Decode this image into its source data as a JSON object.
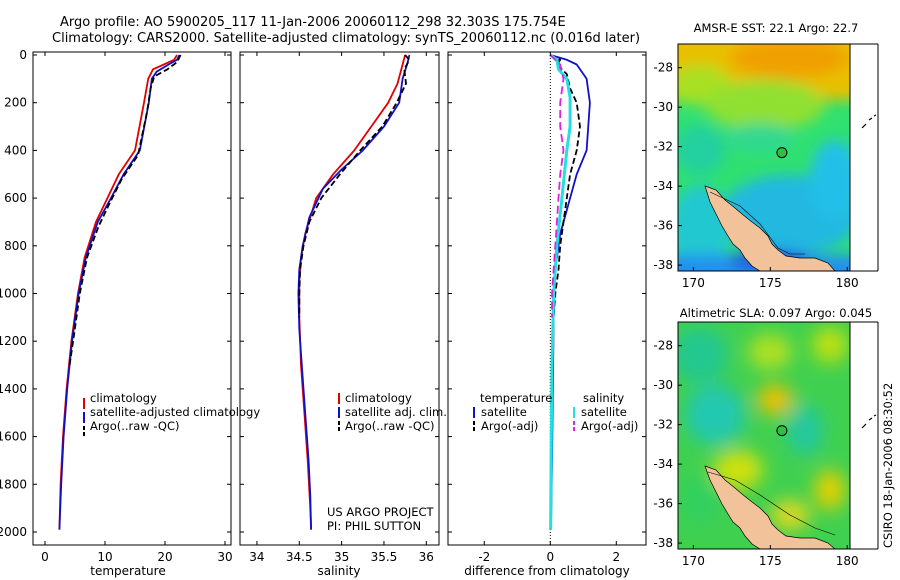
{
  "header": {
    "line1": "Argo profile: AO 5900205_117 11-Jan-2006 20060112_298 32.303S 175.754E",
    "line2": "Climatology: CARS2000. Satellite-adjusted climatology: synTS_20060112.nc (0.016d later)"
  },
  "credit": {
    "project": "US ARGO PROJECT",
    "pi": "PI: PHIL SUTTON",
    "stamp": "CSIRO 18-Jan-2006 08:30:52"
  },
  "colors": {
    "red": "#e00000",
    "blue": "#1010c8",
    "black": "#000000",
    "cyan": "#20e0e0",
    "magenta": "#e020e0",
    "land": "#f2c29a"
  },
  "chart_data": [
    {
      "type": "line",
      "id": "temperature",
      "xlabel": "temperature",
      "ylabel": "",
      "xlim": [
        -2,
        31
      ],
      "ylim": [
        2080,
        0
      ],
      "xticks": [
        "0",
        "10",
        "20",
        "30"
      ],
      "yticks": [
        "0",
        "200",
        "400",
        "600",
        "800",
        "1000",
        "1200",
        "1400",
        "1600",
        "1800",
        "2000"
      ],
      "series": [
        {
          "name": "climatology",
          "color": "red",
          "dash": "",
          "points": [
            [
              22.0,
              0
            ],
            [
              21.5,
              20
            ],
            [
              19.8,
              40
            ],
            [
              18.0,
              60
            ],
            [
              17.2,
              100
            ],
            [
              16.5,
              200
            ],
            [
              15.0,
              400
            ],
            [
              12.3,
              500
            ],
            [
              10.4,
              600
            ],
            [
              8.5,
              700
            ],
            [
              6.6,
              850
            ],
            [
              5.5,
              1000
            ],
            [
              4.4,
              1200
            ],
            [
              3.6,
              1400
            ],
            [
              3.0,
              1600
            ],
            [
              2.6,
              1800
            ],
            [
              2.4,
              1990
            ]
          ]
        },
        {
          "name": "satellite-adjusted climatology",
          "color": "blue",
          "dash": "",
          "points": [
            [
              22.4,
              0
            ],
            [
              22.0,
              20
            ],
            [
              20.6,
              40
            ],
            [
              18.6,
              70
            ],
            [
              17.8,
              100
            ],
            [
              17.3,
              200
            ],
            [
              15.8,
              400
            ],
            [
              13.1,
              500
            ],
            [
              11.0,
              600
            ],
            [
              8.8,
              700
            ],
            [
              6.8,
              850
            ],
            [
              5.6,
              1000
            ],
            [
              4.5,
              1200
            ],
            [
              3.7,
              1400
            ],
            [
              3.1,
              1600
            ],
            [
              2.7,
              1800
            ],
            [
              2.4,
              1990
            ]
          ]
        },
        {
          "name": "Argo(..raw -QC)",
          "color": "black",
          "dash": "6,3",
          "points": [
            [
              22.6,
              0
            ],
            [
              22.0,
              30
            ],
            [
              20.4,
              60
            ],
            [
              18.2,
              90
            ],
            [
              17.6,
              140
            ],
            [
              17.0,
              240
            ],
            [
              15.5,
              420
            ],
            [
              12.8,
              520
            ],
            [
              10.8,
              620
            ],
            [
              8.9,
              720
            ],
            [
              7.0,
              850
            ],
            [
              5.8,
              1000
            ],
            [
              4.8,
              1180
            ],
            [
              4.1,
              1300
            ]
          ]
        }
      ],
      "legend": [
        "climatology",
        "satellite-adjusted climatology",
        "Argo(..raw -QC)"
      ]
    },
    {
      "type": "line",
      "id": "salinity",
      "xlabel": "salinity",
      "ylabel": "",
      "xlim": [
        33.8,
        36.15
      ],
      "ylim": [
        2080,
        0
      ],
      "xticks": [
        "34",
        "34.5",
        "35",
        "35.5",
        "36"
      ],
      "series": [
        {
          "name": "climatology",
          "color": "red",
          "dash": "",
          "points": [
            [
              35.75,
              0
            ],
            [
              35.72,
              40
            ],
            [
              35.66,
              120
            ],
            [
              35.55,
              200
            ],
            [
              35.35,
              300
            ],
            [
              35.15,
              400
            ],
            [
              34.9,
              500
            ],
            [
              34.7,
              600
            ],
            [
              34.57,
              750
            ],
            [
              34.52,
              850
            ],
            [
              34.5,
              950
            ],
            [
              34.5,
              1100
            ],
            [
              34.52,
              1300
            ],
            [
              34.56,
              1500
            ],
            [
              34.6,
              1700
            ],
            [
              34.63,
              1900
            ],
            [
              34.64,
              1990
            ]
          ]
        },
        {
          "name": "satellite adj. clim.",
          "color": "blue",
          "dash": "",
          "points": [
            [
              35.8,
              0
            ],
            [
              35.78,
              30
            ],
            [
              35.72,
              100
            ],
            [
              35.68,
              200
            ],
            [
              35.5,
              300
            ],
            [
              35.25,
              400
            ],
            [
              35.0,
              480
            ],
            [
              34.78,
              560
            ],
            [
              34.62,
              680
            ],
            [
              34.54,
              800
            ],
            [
              34.5,
              900
            ],
            [
              34.49,
              1000
            ],
            [
              34.5,
              1150
            ],
            [
              34.53,
              1300
            ],
            [
              34.57,
              1500
            ],
            [
              34.61,
              1700
            ],
            [
              34.63,
              1850
            ],
            [
              34.64,
              1990
            ]
          ]
        },
        {
          "name": "Argo(..raw -QC)",
          "color": "black",
          "dash": "6,3",
          "points": [
            [
              35.75,
              0
            ],
            [
              35.8,
              20
            ],
            [
              35.74,
              60
            ],
            [
              35.76,
              120
            ],
            [
              35.65,
              200
            ],
            [
              35.48,
              300
            ],
            [
              35.22,
              400
            ],
            [
              34.98,
              500
            ],
            [
              34.76,
              600
            ],
            [
              34.62,
              700
            ],
            [
              34.55,
              800
            ],
            [
              34.51,
              900
            ],
            [
              34.5,
              1000
            ],
            [
              34.5,
              1100
            ]
          ]
        }
      ],
      "legend": [
        "climatology",
        "satellite adj. clim.",
        "Argo(..raw -QC)"
      ]
    },
    {
      "type": "line",
      "id": "difference",
      "xlabel": "difference from climatology",
      "ylabel": "",
      "xlim": [
        -3.1,
        2.9
      ],
      "ylim": [
        2080,
        0
      ],
      "xticks": [
        "-2",
        "0",
        "2"
      ],
      "series": [
        {
          "name": "temperature satellite",
          "color": "blue",
          "dash": "",
          "points": [
            [
              0.0,
              0
            ],
            [
              0.5,
              20
            ],
            [
              0.8,
              40
            ],
            [
              1.1,
              100
            ],
            [
              1.2,
              200
            ],
            [
              1.1,
              400
            ],
            [
              0.8,
              500
            ],
            [
              0.6,
              600
            ],
            [
              0.3,
              750
            ],
            [
              0.15,
              900
            ],
            [
              0.1,
              1100
            ],
            [
              0.08,
              1400
            ],
            [
              0.05,
              1700
            ],
            [
              0.02,
              1990
            ]
          ]
        },
        {
          "name": "temperature Argo(-adj)",
          "color": "black",
          "dash": "6,3",
          "points": [
            [
              0.0,
              0
            ],
            [
              0.3,
              20
            ],
            [
              0.2,
              40
            ],
            [
              0.5,
              80
            ],
            [
              0.6,
              140
            ],
            [
              0.8,
              200
            ],
            [
              0.9,
              300
            ],
            [
              0.8,
              400
            ],
            [
              0.6,
              500
            ],
            [
              0.5,
              600
            ],
            [
              0.4,
              700
            ],
            [
              0.3,
              800
            ],
            [
              0.25,
              900
            ],
            [
              0.15,
              1000
            ],
            [
              0.1,
              1100
            ],
            [
              0.05,
              1200
            ],
            [
              0.05,
              1300
            ]
          ]
        },
        {
          "name": "salinity satellite",
          "color": "cyan",
          "dash": "",
          "points": [
            [
              0.0,
              0
            ],
            [
              0.2,
              20
            ],
            [
              0.25,
              60
            ],
            [
              0.5,
              100
            ],
            [
              0.6,
              180
            ],
            [
              0.6,
              300
            ],
            [
              0.5,
              400
            ],
            [
              0.35,
              600
            ],
            [
              0.2,
              800
            ],
            [
              0.1,
              1000
            ],
            [
              0.05,
              1300
            ],
            [
              0.03,
              1600
            ],
            [
              0.01,
              1990
            ]
          ]
        },
        {
          "name": "salinity Argo(-adj)",
          "color": "magenta",
          "dash": "8,4",
          "points": [
            [
              0.0,
              0
            ],
            [
              0.3,
              40
            ],
            [
              0.4,
              100
            ],
            [
              0.3,
              200
            ],
            [
              0.3,
              300
            ],
            [
              0.4,
              400
            ],
            [
              0.3,
              500
            ],
            [
              0.25,
              600
            ],
            [
              0.2,
              700
            ],
            [
              0.15,
              800
            ],
            [
              0.1,
              900
            ],
            [
              0.05,
              1000
            ],
            [
              0.05,
              1100
            ]
          ]
        }
      ],
      "legend_headers": [
        "temperature",
        "salinity"
      ],
      "legend": [
        "satellite",
        "Argo(-adj)",
        "satellite",
        "Argo(-adj)"
      ]
    },
    {
      "type": "heatmap",
      "id": "sst_map",
      "title": "AMSR-E SST: 22.1 Argo: 22.7",
      "xlim": [
        169,
        182
      ],
      "ylim": [
        -38.3,
        -26.8
      ],
      "xticks": [
        "170",
        "175",
        "180"
      ],
      "yticks": [
        "-28",
        "-30",
        "-32",
        "-34",
        "-36",
        "-38"
      ],
      "marker": {
        "lon": 175.754,
        "lat": -32.303
      }
    },
    {
      "type": "heatmap",
      "id": "sla_map",
      "title": "Altimetric SLA: 0.097 Argo: 0.045",
      "xlim": [
        169,
        182
      ],
      "ylim": [
        -38.3,
        -26.8
      ],
      "xticks": [
        "170",
        "175",
        "180"
      ],
      "yticks": [
        "-28",
        "-30",
        "-32",
        "-34",
        "-36",
        "-38"
      ],
      "marker": {
        "lon": 175.754,
        "lat": -32.303
      }
    }
  ]
}
